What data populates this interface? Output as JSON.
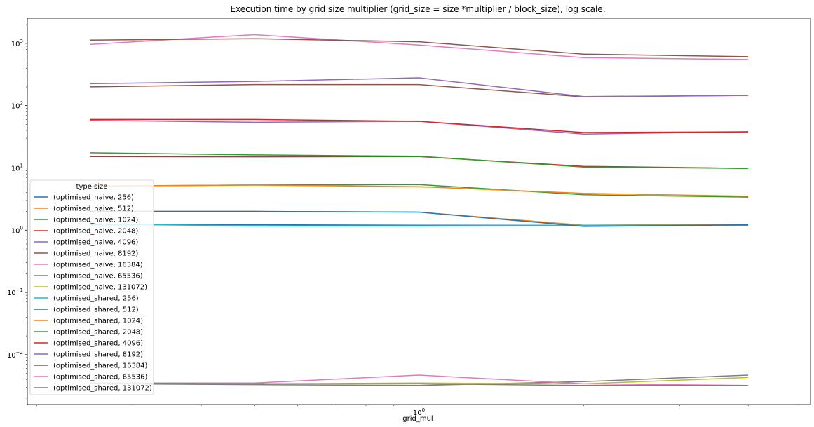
{
  "chart_data": {
    "type": "line",
    "title": "Execution time by grid size multiplier (grid_size = size *multiplier / block_size), log scale.",
    "xlabel": "grid_mul",
    "ylabel": "",
    "x": [
      0.25,
      0.5,
      1,
      2,
      4
    ],
    "xlim": [
      0.1923,
      5.2
    ],
    "ylim": [
      0.00158,
      2535
    ],
    "x_log": true,
    "y_log": true,
    "y_tick_labels": [
      "10^-2",
      "10^-1",
      "10^0",
      "10^1",
      "10^2",
      "10^3"
    ],
    "x_tick_labels": [
      "10^0"
    ],
    "legend": {
      "title": "type,size",
      "placement": "lower-left"
    },
    "series": [
      {
        "name": "(optimised_naive, 256)",
        "color": "#1f77b4",
        "values": [
          1.22,
          1.22,
          1.2,
          1.19,
          1.22
        ]
      },
      {
        "name": "(optimised_naive, 512)",
        "color": "#ff7f0e",
        "values": [
          2.0,
          2.0,
          1.95,
          1.2,
          1.24
        ]
      },
      {
        "name": "(optimised_naive, 1024)",
        "color": "#2ca02c",
        "values": [
          5.1,
          5.3,
          5.4,
          3.7,
          3.4
        ]
      },
      {
        "name": "(optimised_naive, 2048)",
        "color": "#d62728",
        "values": [
          15.2,
          15.1,
          15.2,
          10.6,
          9.8
        ]
      },
      {
        "name": "(optimised_naive, 4096)",
        "color": "#9467bd",
        "values": [
          58,
          54,
          56,
          35,
          38
        ]
      },
      {
        "name": "(optimised_naive, 8192)",
        "color": "#8c564b",
        "values": [
          200,
          218,
          218,
          138,
          146
        ]
      },
      {
        "name": "(optimised_naive, 16384)",
        "color": "#e377c2",
        "values": [
          960,
          1380,
          940,
          590,
          550
        ]
      },
      {
        "name": "(optimised_naive, 65536)",
        "color": "#7f7f7f",
        "values": [
          0.0034,
          0.0033,
          0.0032,
          0.0037,
          0.0047
        ]
      },
      {
        "name": "(optimised_naive, 131072)",
        "color": "#bcbd22",
        "values": [
          0.0035,
          0.0034,
          0.0035,
          0.0034,
          0.0043
        ]
      },
      {
        "name": "(optimised_shared, 256)",
        "color": "#17becf",
        "values": [
          1.25,
          1.17,
          1.17,
          1.2,
          1.2
        ]
      },
      {
        "name": "(optimised_shared, 512)",
        "color": "#1f77b4",
        "values": [
          2.0,
          2.0,
          1.95,
          1.15,
          1.22
        ]
      },
      {
        "name": "(optimised_shared, 1024)",
        "color": "#ff7f0e",
        "values": [
          5.1,
          5.3,
          5.0,
          3.9,
          3.5
        ]
      },
      {
        "name": "(optimised_shared, 2048)",
        "color": "#2ca02c",
        "values": [
          17.5,
          16.2,
          15.4,
          10.3,
          9.8
        ]
      },
      {
        "name": "(optimised_shared, 4096)",
        "color": "#d62728",
        "values": [
          60,
          60,
          56,
          37,
          38
        ]
      },
      {
        "name": "(optimised_shared, 8192)",
        "color": "#9467bd",
        "values": [
          225,
          245,
          280,
          140,
          146
        ]
      },
      {
        "name": "(optimised_shared, 16384)",
        "color": "#8c564b",
        "values": [
          1130,
          1190,
          1060,
          670,
          610
        ]
      },
      {
        "name": "(optimised_shared, 65536)",
        "color": "#e377c2",
        "values": [
          0.0035,
          0.0035,
          0.0047,
          0.0034,
          0.0032
        ]
      },
      {
        "name": "(optimised_shared, 131072)",
        "color": "#7f7f7f",
        "values": [
          0.0035,
          0.0034,
          0.0034,
          0.0032,
          0.0032
        ]
      }
    ]
  }
}
